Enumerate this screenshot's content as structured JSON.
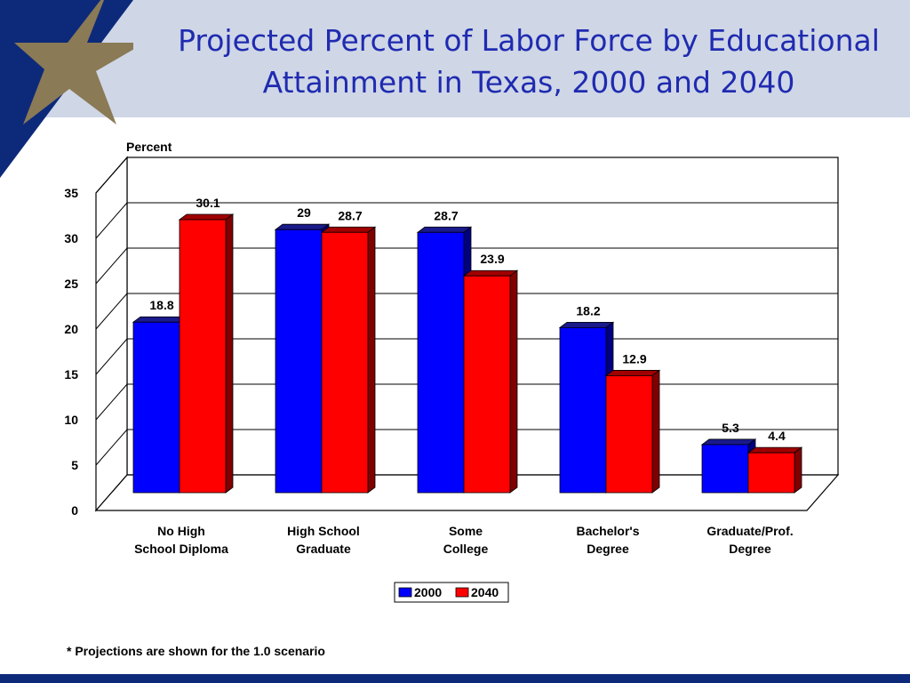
{
  "slide": {
    "title_line1": "Projected Percent of Labor Force by Educational",
    "title_line2": "Attainment in Texas, 2000 and 2040",
    "footnote": "* Projections are shown for the 1.0 scenario",
    "colors": {
      "header_band": "#cfd6e6",
      "navy": "#0d2a7a",
      "star": "#8a7a55",
      "title": "#1f2bb0"
    }
  },
  "chart_data": {
    "type": "bar",
    "title": "",
    "ylabel": "Percent",
    "xlabel": "",
    "ylim": [
      0,
      35
    ],
    "yticks": [
      0,
      5,
      10,
      15,
      20,
      25,
      30,
      35
    ],
    "grid": true,
    "legend_position": "bottom-center",
    "categories": [
      [
        "No High",
        "School Diploma"
      ],
      [
        "High School",
        "Graduate"
      ],
      [
        "Some",
        "College"
      ],
      [
        "Bachelor's",
        "Degree"
      ],
      [
        "Graduate/Prof.",
        "Degree"
      ]
    ],
    "series": [
      {
        "name": "2000",
        "color": "#0000ff",
        "values": [
          18.8,
          29,
          28.7,
          18.2,
          5.3
        ],
        "labels": [
          "18.8",
          "29",
          "28.7",
          "18.2",
          "5.3"
        ]
      },
      {
        "name": "2040",
        "color": "#ff0000",
        "values": [
          30.1,
          28.7,
          23.9,
          12.9,
          4.4
        ],
        "labels": [
          "30.1",
          "28.7",
          "23.9",
          "12.9",
          "4.4"
        ]
      }
    ]
  }
}
